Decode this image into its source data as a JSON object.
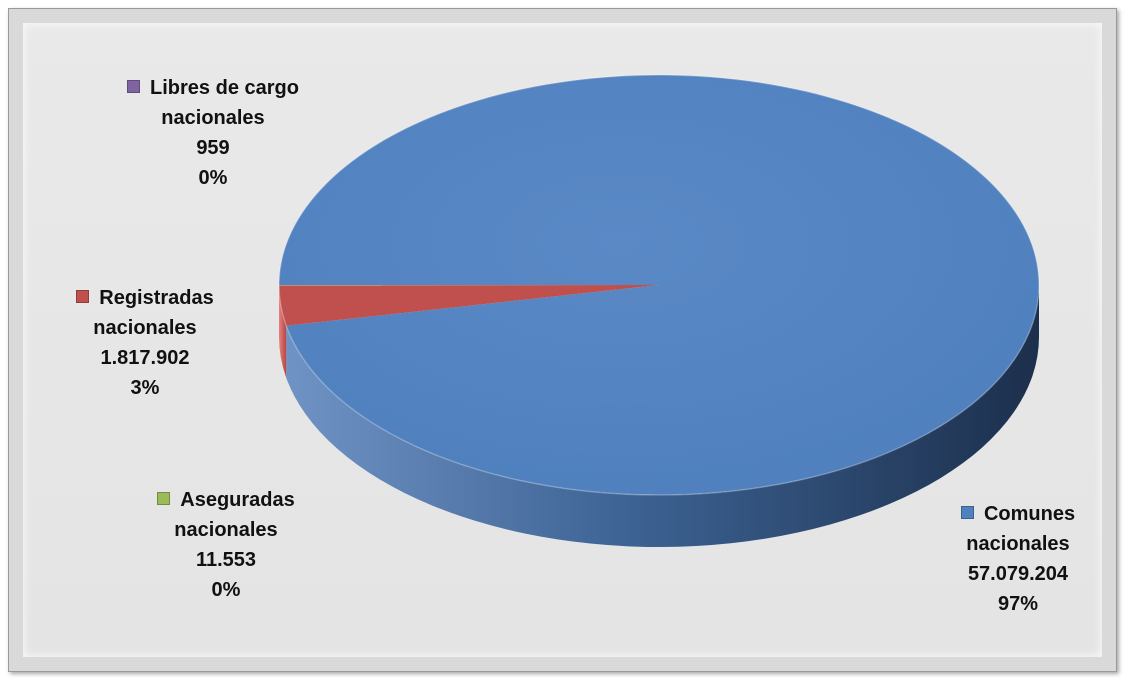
{
  "chart_data": {
    "type": "pie",
    "title": "",
    "slices": [
      {
        "name": "Comunes nacionales",
        "value_text": "57.079.204",
        "value": 57079204,
        "percent_text": "97%",
        "color": "#4f81bd"
      },
      {
        "name": "Registradas nacionales",
        "value_text": "1.817.902",
        "value": 1817902,
        "percent_text": "3%",
        "color": "#c0504d"
      },
      {
        "name": "Aseguradas nacionales",
        "value_text": "11.553",
        "value": 11553,
        "percent_text": "0%",
        "color": "#9bbb59"
      },
      {
        "name": "Libres de cargo nacionales",
        "value_text": "959",
        "value": 959,
        "percent_text": "0%",
        "color": "#8064a2"
      }
    ],
    "labels": {
      "comunes": {
        "line1": "Comunes",
        "line2": "nacionales",
        "value": "57.079.204",
        "percent": "97%"
      },
      "registradas": {
        "line1": "Registradas",
        "line2": "nacionales",
        "value": "1.817.902",
        "percent": "3%"
      },
      "aseguradas": {
        "line1": "Aseguradas",
        "line2": "nacionales",
        "value": "11.553",
        "percent": "0%"
      },
      "libres": {
        "line1": "Libres de cargo",
        "line2": "nacionales",
        "value": "959",
        "percent": "0%"
      }
    },
    "style": "3d-pie"
  }
}
